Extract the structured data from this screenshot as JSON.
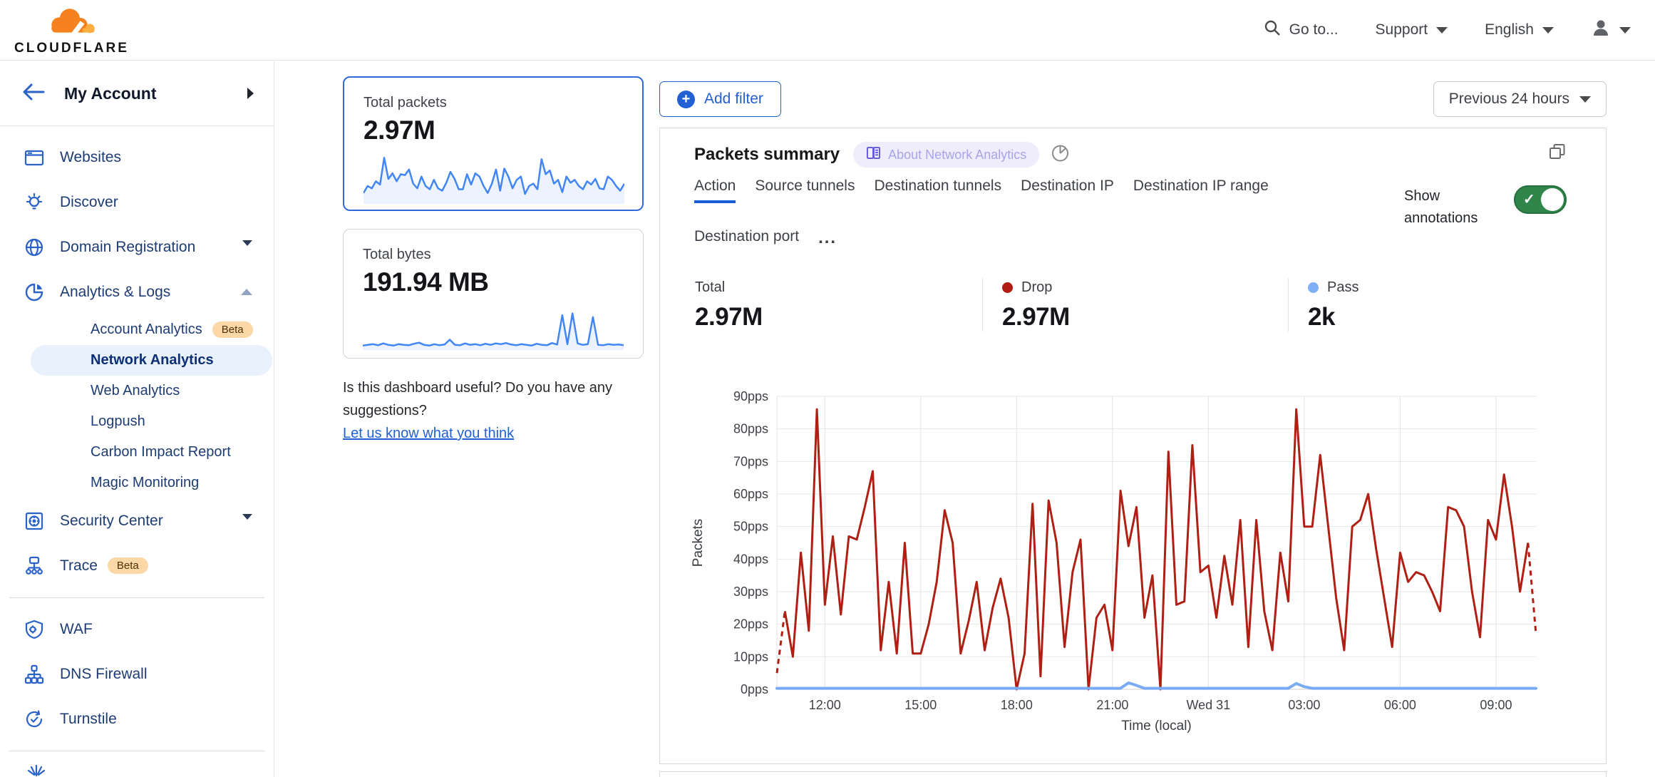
{
  "header": {
    "logo_text": "CLOUDFLARE",
    "goto_label": "Go to...",
    "support_label": "Support",
    "language_label": "English"
  },
  "sidebar": {
    "account": {
      "label": "My Account"
    },
    "items": [
      {
        "label": "Websites"
      },
      {
        "label": "Discover"
      },
      {
        "label": "Domain Registration"
      },
      {
        "label": "Analytics & Logs"
      },
      {
        "label": "Account Analytics",
        "badge": "Beta"
      },
      {
        "label": "Network Analytics",
        "selected": true
      },
      {
        "label": "Web Analytics"
      },
      {
        "label": "Logpush"
      },
      {
        "label": "Carbon Impact Report"
      },
      {
        "label": "Magic Monitoring"
      },
      {
        "label": "Security Center"
      },
      {
        "label": "Trace",
        "badge": "Beta"
      },
      {
        "label": "WAF"
      },
      {
        "label": "DNS Firewall"
      },
      {
        "label": "Turnstile"
      }
    ]
  },
  "summary_cards": {
    "packets": {
      "label": "Total packets",
      "value": "2.97M",
      "sparkline": [
        20,
        35,
        30,
        45,
        38,
        95,
        50,
        62,
        45,
        60,
        58,
        70,
        40,
        30,
        55,
        35,
        28,
        48,
        30,
        25,
        42,
        65,
        50,
        28,
        28,
        60,
        38,
        62,
        55,
        35,
        20,
        40,
        70,
        25,
        72,
        55,
        30,
        48,
        55,
        18,
        35,
        40,
        28,
        92,
        60,
        68,
        40,
        48,
        22,
        55,
        42,
        48,
        35,
        28,
        45,
        38,
        50,
        30,
        28,
        55,
        48,
        35,
        25,
        40
      ]
    },
    "bytes": {
      "label": "Total bytes",
      "value": "191.94 MB",
      "sparkline": [
        8,
        10,
        12,
        9,
        14,
        10,
        8,
        12,
        10,
        9,
        13,
        16,
        10,
        8,
        12,
        9,
        11,
        24,
        10,
        9,
        14,
        10,
        12,
        9,
        13,
        10,
        14,
        12,
        15,
        11,
        9,
        12,
        10,
        8,
        13,
        10,
        9,
        15,
        11,
        90,
        12,
        95,
        14,
        10,
        12,
        85,
        10,
        9,
        12,
        10,
        11,
        9
      ]
    }
  },
  "feedback": {
    "question_line1": "Is this dashboard useful? Do you have any",
    "question_line2": "suggestions?",
    "link_label": "Let us know what you think"
  },
  "toolbar": {
    "add_filter_label": "Add filter",
    "time_range_label": "Previous 24 hours"
  },
  "panel": {
    "title": "Packets summary",
    "about_badge": "About Network Analytics",
    "tabs": [
      "Action",
      "Source tunnels",
      "Destination tunnels",
      "Destination IP",
      "Destination IP range",
      "Destination port"
    ],
    "active_tab": "Action",
    "more_tabs_label": "...",
    "annotations_label": "Show annotations",
    "annotations_on": true,
    "stats": [
      {
        "label": "Total",
        "value": "2.97M",
        "dot_color": ""
      },
      {
        "label": "Drop",
        "value": "2.97M",
        "dot_color": "#b01c12"
      },
      {
        "label": "Pass",
        "value": "2k",
        "dot_color": "#7fb0f5"
      }
    ]
  },
  "chart_data": {
    "type": "line",
    "title": "Packets summary",
    "xlabel": "Time (local)",
    "ylabel": "Packets",
    "ylim": [
      0,
      90
    ],
    "y_unit": "pps",
    "y_ticks": [
      0,
      10,
      20,
      30,
      40,
      50,
      60,
      70,
      80,
      90
    ],
    "grid": true,
    "legend_position": "top",
    "x_tick_labels": [
      "12:00",
      "15:00",
      "18:00",
      "21:00",
      "Wed 31",
      "03:00",
      "06:00",
      "09:00"
    ],
    "x_tick_indices": [
      6,
      18,
      30,
      42,
      54,
      66,
      78,
      90
    ],
    "series": [
      {
        "name": "Drop",
        "color": "#b01f13",
        "total_label": "2.97M",
        "dashed_start": true,
        "dashed_end": true,
        "values": [
          5,
          24,
          10,
          42,
          18,
          86,
          26,
          47,
          23,
          47,
          46,
          56,
          67,
          12,
          33,
          11,
          45,
          11,
          11,
          20,
          33,
          55,
          45,
          11,
          21,
          33,
          12,
          25,
          34,
          22,
          0,
          11,
          57,
          4,
          58,
          45,
          13,
          36,
          46,
          0,
          22,
          26,
          12,
          61,
          44,
          56,
          22,
          35,
          0,
          73,
          26,
          27,
          75,
          36,
          38,
          22,
          41,
          26,
          52,
          13,
          52,
          24,
          12,
          42,
          27,
          86,
          50,
          50,
          72,
          50,
          28,
          12,
          50,
          52,
          60,
          43,
          28,
          13,
          42,
          33,
          36,
          35,
          30,
          24,
          56,
          55,
          50,
          30,
          16,
          52,
          46,
          66,
          50,
          30,
          45,
          17
        ]
      },
      {
        "name": "Pass",
        "color": "#7aabf2",
        "total_label": "2k",
        "dashed_start": false,
        "dashed_end": false,
        "values": [
          0.3,
          0.3,
          0.3,
          0.3,
          0.3,
          0.3,
          0.3,
          0.3,
          0.3,
          0.3,
          0.3,
          0.3,
          0.3,
          0.3,
          0.3,
          0.3,
          0.3,
          0.3,
          0.3,
          0.3,
          0.3,
          0.3,
          0.3,
          0.3,
          0.3,
          0.3,
          0.3,
          0.3,
          0.3,
          0.3,
          0.3,
          0.3,
          0.3,
          0.3,
          0.3,
          0.3,
          0.3,
          0.3,
          0.3,
          0.3,
          0.3,
          0.3,
          0.3,
          0.3,
          2,
          1.2,
          0.3,
          0.3,
          0.3,
          0.3,
          0.3,
          0.3,
          0.3,
          0.3,
          0.3,
          0.3,
          0.3,
          0.3,
          0.3,
          0.3,
          0.3,
          0.3,
          0.3,
          0.3,
          0.3,
          1.8,
          0.8,
          0.3,
          0.3,
          0.3,
          0.3,
          0.3,
          0.3,
          0.3,
          0.3,
          0.3,
          0.3,
          0.3,
          0.3,
          0.3,
          0.3,
          0.3,
          0.3,
          0.3,
          0.3,
          0.3,
          0.3,
          0.3,
          0.3,
          0.3,
          0.3,
          0.3,
          0.3,
          0.3,
          0.3,
          0.3
        ]
      }
    ]
  },
  "colors": {
    "accent_blue": "#2260d3",
    "drop_red": "#b01f13",
    "pass_blue": "#7aabf2",
    "toggle_green": "#2f854a",
    "beta_badge_bg": "#fcd8a7",
    "selected_pill_bg": "#e8f1fc",
    "logo_orange": "#f6821f",
    "logo_light_orange": "#fbad41"
  }
}
